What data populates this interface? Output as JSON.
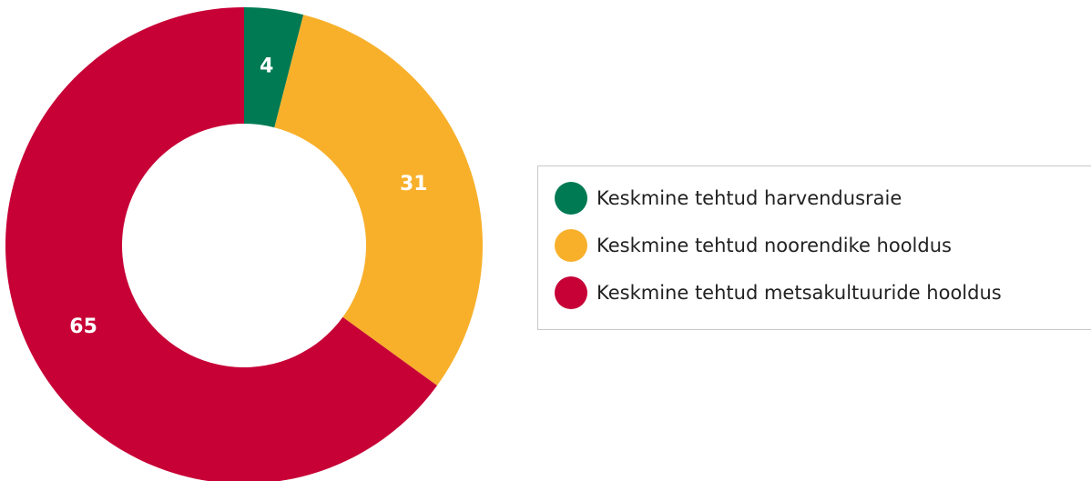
{
  "chart_data": {
    "type": "donut",
    "categories": [
      "Keskmine tehtud harvendusraie",
      "Keskmine tehtud noorendike hooldus",
      "Keskmine tehtud metsakultuuride hooldus"
    ],
    "values": [
      4,
      31,
      65
    ],
    "colors": [
      "#007a53",
      "#f8b02b",
      "#c70036"
    ],
    "legend": "right"
  }
}
